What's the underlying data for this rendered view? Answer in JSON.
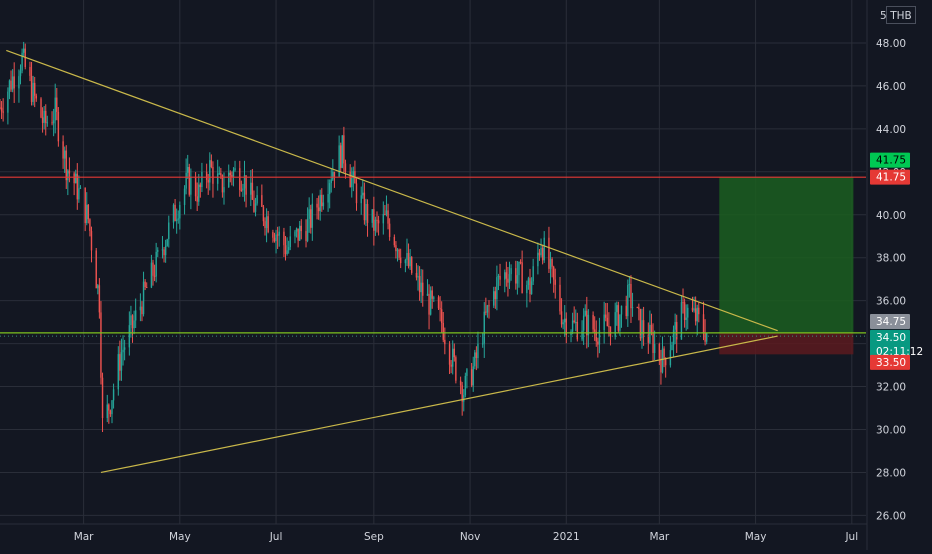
{
  "currency": "THB",
  "colors": {
    "background": "#131722",
    "up": "#26a69a",
    "down": "#ef5350",
    "trendline": "#c9b84a",
    "resistance_line": "#e53935",
    "current_price_line": "#7cc21e",
    "target_zone": "#1b5e20",
    "stop_zone": "#5c1a1f"
  },
  "chart_data": {
    "type": "candlestick",
    "y_axis": {
      "range": [
        25.6,
        50.0
      ],
      "ticks": [
        "26.00",
        "28.00",
        "30.00",
        "32.00",
        "34.00",
        "36.00",
        "38.00",
        "40.00",
        "42.00",
        "44.00",
        "46.00",
        "48.00"
      ],
      "top_partial_label": "50",
      "position": "right"
    },
    "x_axis": {
      "ticks": [
        "Mar",
        "May",
        "Jul",
        "Sep",
        "Nov",
        "2021",
        "Mar",
        "May",
        "Jul"
      ],
      "tick_dates": [
        "2020-03-01",
        "2020-05-01",
        "2020-07-01",
        "2020-09-01",
        "2020-11-01",
        "2021-01-01",
        "2021-03-01",
        "2021-05-01",
        "2021-07-01"
      ],
      "range": [
        "2020-01-08",
        "2021-07-10"
      ]
    },
    "series_close": [
      [
        "2020-01-08",
        45.0
      ],
      [
        "2020-01-15",
        46.2
      ],
      [
        "2020-01-22",
        47.3
      ],
      [
        "2020-01-29",
        45.6
      ],
      [
        "2020-02-05",
        44.2
      ],
      [
        "2020-02-12",
        44.8
      ],
      [
        "2020-02-19",
        42.3
      ],
      [
        "2020-02-26",
        41.2
      ],
      [
        "2020-03-04",
        39.8
      ],
      [
        "2020-03-11",
        36.0
      ],
      [
        "2020-03-13",
        30.2
      ],
      [
        "2020-03-18",
        31.3
      ],
      [
        "2020-03-25",
        33.6
      ],
      [
        "2020-04-01",
        34.8
      ],
      [
        "2020-04-08",
        36.2
      ],
      [
        "2020-04-15",
        37.5
      ],
      [
        "2020-04-22",
        38.9
      ],
      [
        "2020-04-29",
        40.3
      ],
      [
        "2020-05-06",
        41.6
      ],
      [
        "2020-05-13",
        41.0
      ],
      [
        "2020-05-20",
        42.2
      ],
      [
        "2020-05-27",
        41.3
      ],
      [
        "2020-06-03",
        42.0
      ],
      [
        "2020-06-10",
        41.8
      ],
      [
        "2020-06-17",
        40.4
      ],
      [
        "2020-06-24",
        40.0
      ],
      [
        "2020-07-01",
        39.2
      ],
      [
        "2020-07-08",
        38.4
      ],
      [
        "2020-07-15",
        39.1
      ],
      [
        "2020-07-22",
        39.6
      ],
      [
        "2020-07-29",
        40.8
      ],
      [
        "2020-08-05",
        42.0
      ],
      [
        "2020-08-12",
        43.0
      ],
      [
        "2020-08-19",
        41.4
      ],
      [
        "2020-08-26",
        40.2
      ],
      [
        "2020-09-02",
        39.4
      ],
      [
        "2020-09-09",
        39.8
      ],
      [
        "2020-09-16",
        38.6
      ],
      [
        "2020-09-23",
        37.6
      ],
      [
        "2020-09-30",
        36.6
      ],
      [
        "2020-10-07",
        35.8
      ],
      [
        "2020-10-14",
        35.0
      ],
      [
        "2020-10-21",
        33.2
      ],
      [
        "2020-10-28",
        31.8
      ],
      [
        "2020-11-04",
        33.0
      ],
      [
        "2020-11-11",
        35.2
      ],
      [
        "2020-11-18",
        36.8
      ],
      [
        "2020-11-25",
        37.4
      ],
      [
        "2020-12-02",
        37.2
      ],
      [
        "2020-12-09",
        36.6
      ],
      [
        "2020-12-16",
        38.8
      ],
      [
        "2020-12-23",
        37.0
      ],
      [
        "2020-12-30",
        35.2
      ],
      [
        "2021-01-06",
        34.8
      ],
      [
        "2021-01-13",
        35.0
      ],
      [
        "2021-01-20",
        34.6
      ],
      [
        "2021-01-27",
        34.8
      ],
      [
        "2021-02-03",
        35.2
      ],
      [
        "2021-02-10",
        36.2
      ],
      [
        "2021-02-17",
        34.8
      ],
      [
        "2021-02-24",
        34.2
      ],
      [
        "2021-03-03",
        33.2
      ],
      [
        "2021-03-10",
        34.4
      ],
      [
        "2021-03-17",
        35.6
      ],
      [
        "2021-03-24",
        35.2
      ],
      [
        "2021-03-31",
        34.5
      ]
    ],
    "price_labels": [
      {
        "label": "41.75",
        "value": 41.75,
        "color": "#00c853",
        "text_color": "#000000"
      },
      {
        "label": "41.75",
        "value": 41.75,
        "color": "#e53935",
        "text_color": "#ffffff"
      },
      {
        "label": "34.75",
        "value": 34.75,
        "color": "#8a8f99",
        "text_color": "#ffffff"
      },
      {
        "label": "34.75",
        "value": 34.75,
        "color": "#00c853",
        "text_color": "#000000"
      },
      {
        "label": "34.50",
        "value": 34.5,
        "color": "#089981",
        "text_color": "#ffffff",
        "sub_label": "02:11:12"
      },
      {
        "label": "33.50",
        "value": 33.5,
        "color": "#e53935",
        "text_color": "#ffffff"
      }
    ],
    "horizontal_lines": [
      {
        "name": "resistance",
        "value": 41.75,
        "color": "#e53935"
      },
      {
        "name": "current-price",
        "value": 34.5,
        "color": "#7cc21e"
      }
    ],
    "trendlines": [
      {
        "name": "upper-trendline",
        "from": [
          "2020-01-12",
          47.65
        ],
        "to": [
          "2021-05-15",
          34.6
        ]
      },
      {
        "name": "lower-trendline",
        "from": [
          "2020-03-12",
          28.0
        ],
        "to": [
          "2021-05-15",
          34.35
        ]
      }
    ],
    "position": {
      "entry": 34.5,
      "target": 41.75,
      "stop": 33.5,
      "start": "2021-04-08",
      "end": "2021-07-02"
    }
  }
}
